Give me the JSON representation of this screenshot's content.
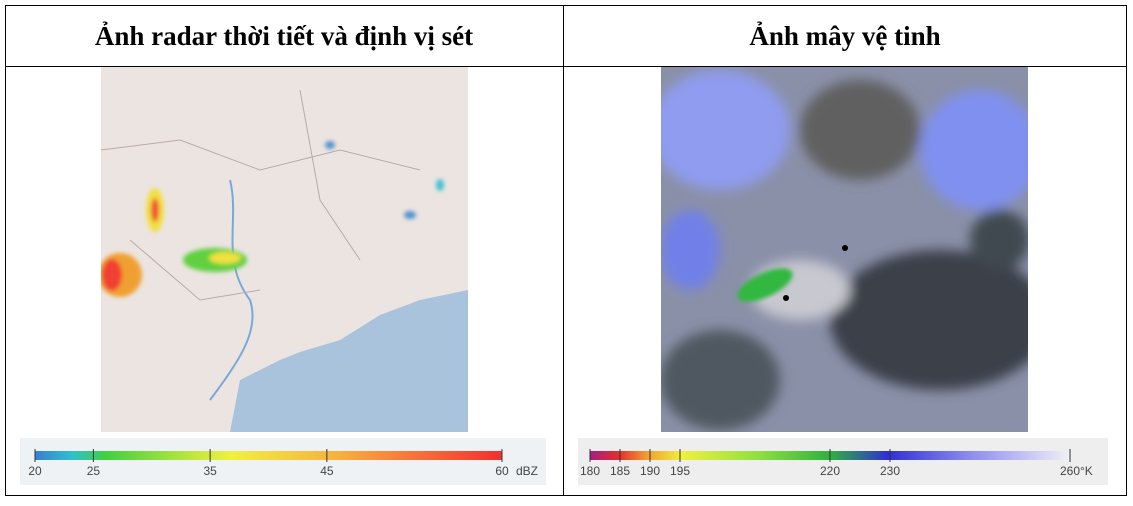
{
  "header": {
    "left_title": "Ảnh radar thời tiết và định vị sét",
    "right_title": "Ảnh mây vệ tinh"
  },
  "radar_scale": {
    "min": 20,
    "max": 60,
    "ticks": [
      20,
      25,
      35,
      45,
      60
    ],
    "unit": "dBZ"
  },
  "satellite_scale": {
    "min": 180,
    "max": 260,
    "ticks": [
      180,
      185,
      190,
      195,
      220,
      230,
      260
    ],
    "unit": "°K"
  }
}
